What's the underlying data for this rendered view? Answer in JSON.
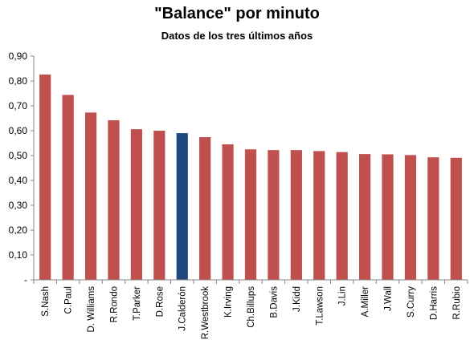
{
  "chart_data": {
    "type": "bar",
    "title": "\"Balance\" por minuto",
    "subtitle": "Datos de los tres últimos años",
    "xlabel": "",
    "ylabel": "",
    "ylim": [
      0,
      0.9
    ],
    "yticks": [
      "-",
      "0,10",
      "0,20",
      "0,30",
      "0,40",
      "0,50",
      "0,60",
      "0,70",
      "0,80",
      "0,90"
    ],
    "grid": false,
    "legend": "none",
    "categories": [
      "S.Nash",
      "C.Paul",
      "D. Williams",
      "R.Rondo",
      "T.Parker",
      "D.Rose",
      "J.Calderón",
      "R.Westbrook",
      "K.Irving",
      "Ch.Billups",
      "B.Davis",
      "J.Kidd",
      "T.Lawson",
      "J.Lin",
      "A.Miller",
      "J.Wall",
      "S.Curry",
      "D.Harris",
      "R.Rubio"
    ],
    "values": [
      0.826,
      0.744,
      0.673,
      0.642,
      0.606,
      0.6,
      0.59,
      0.574,
      0.545,
      0.525,
      0.522,
      0.522,
      0.518,
      0.514,
      0.506,
      0.505,
      0.502,
      0.493,
      0.491
    ],
    "highlight_index": 6,
    "colors": {
      "bar": "#c0504d",
      "highlight": "#1f497d",
      "axis": "#868686"
    }
  }
}
